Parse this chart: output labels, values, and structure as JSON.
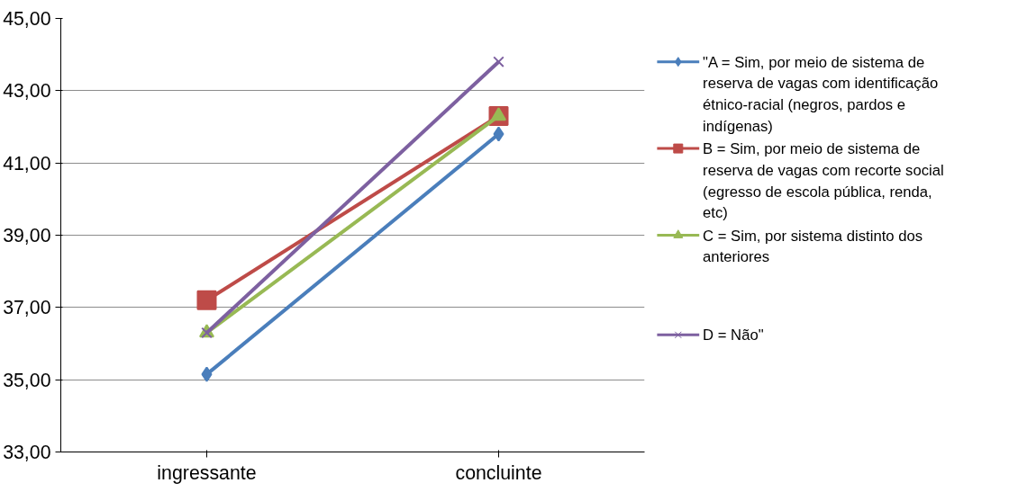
{
  "chart_data": {
    "type": "line",
    "categories": [
      "ingressante",
      "concluinte"
    ],
    "series": [
      {
        "name": "\"A = Sim, por meio de sistema de reserva de vagas com identificação étnico-racial (negros, pardos e indígenas)",
        "color": "#4a7ebb",
        "marker": "diamond",
        "values": [
          35.15,
          41.8
        ]
      },
      {
        "name": "B = Sim, por meio de sistema de reserva de vagas com recorte social (egresso de escola pública, renda, etc)",
        "color": "#be4b48",
        "marker": "square",
        "values": [
          37.2,
          42.3
        ]
      },
      {
        "name": "C = Sim, por sistema distinto dos anteriores",
        "color": "#98b954",
        "marker": "triangle",
        "values": [
          36.3,
          42.3
        ]
      },
      {
        "name": "D = Não\"",
        "color": "#7d60a0",
        "marker": "cross",
        "values": [
          36.3,
          43.8
        ]
      }
    ],
    "ylim": [
      33,
      45
    ],
    "yticks": [
      {
        "value": 33,
        "label": "33,00"
      },
      {
        "value": 35,
        "label": "35,00"
      },
      {
        "value": 37,
        "label": "37,00"
      },
      {
        "value": 39,
        "label": "39,00"
      },
      {
        "value": 41,
        "label": "41,00"
      },
      {
        "value": 43,
        "label": "43,00"
      },
      {
        "value": 45,
        "label": "45,00"
      }
    ],
    "grid": "y",
    "legend": "right",
    "line_style": "solid"
  }
}
